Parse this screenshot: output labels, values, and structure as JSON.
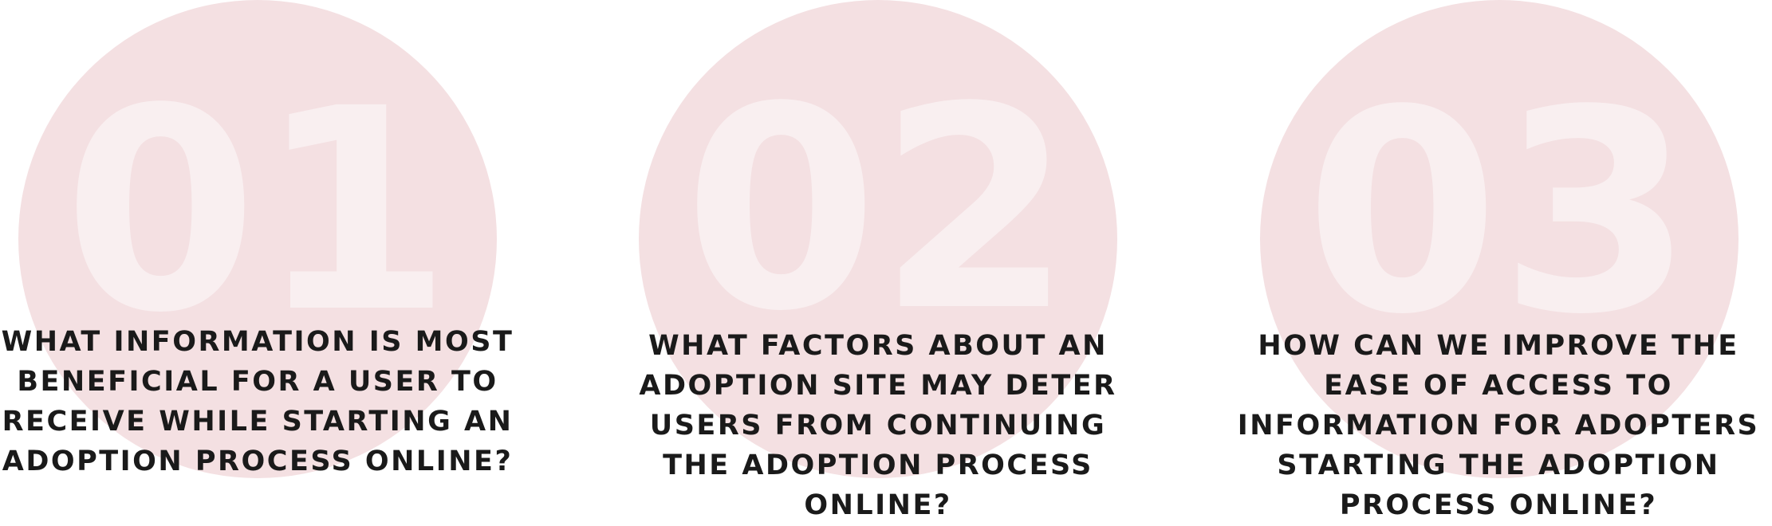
{
  "colors": {
    "circle": "#f4e0e2",
    "number": "#f9eff0",
    "text": "#1a1a1a",
    "background": "#ffffff"
  },
  "items": [
    {
      "number": "01",
      "question_lines": [
        "WHAT INFORMATION IS MOST",
        "BENEFICIAL FOR A USER TO",
        "RECEIVE WHILE STARTING AN",
        "ADOPTION PROCESS ONLINE?"
      ]
    },
    {
      "number": "02",
      "question_lines": [
        "WHAT FACTORS ABOUT AN",
        "ADOPTION SITE MAY DETER",
        "USERS FROM CONTINUING",
        "THE ADOPTION PROCESS",
        "ONLINE?"
      ]
    },
    {
      "number": "03",
      "question_lines": [
        "HOW CAN WE IMPROVE THE",
        "EASE OF ACCESS TO",
        "INFORMATION FOR ADOPTERS",
        "STARTING THE ADOPTION",
        "PROCESS ONLINE?"
      ]
    }
  ]
}
